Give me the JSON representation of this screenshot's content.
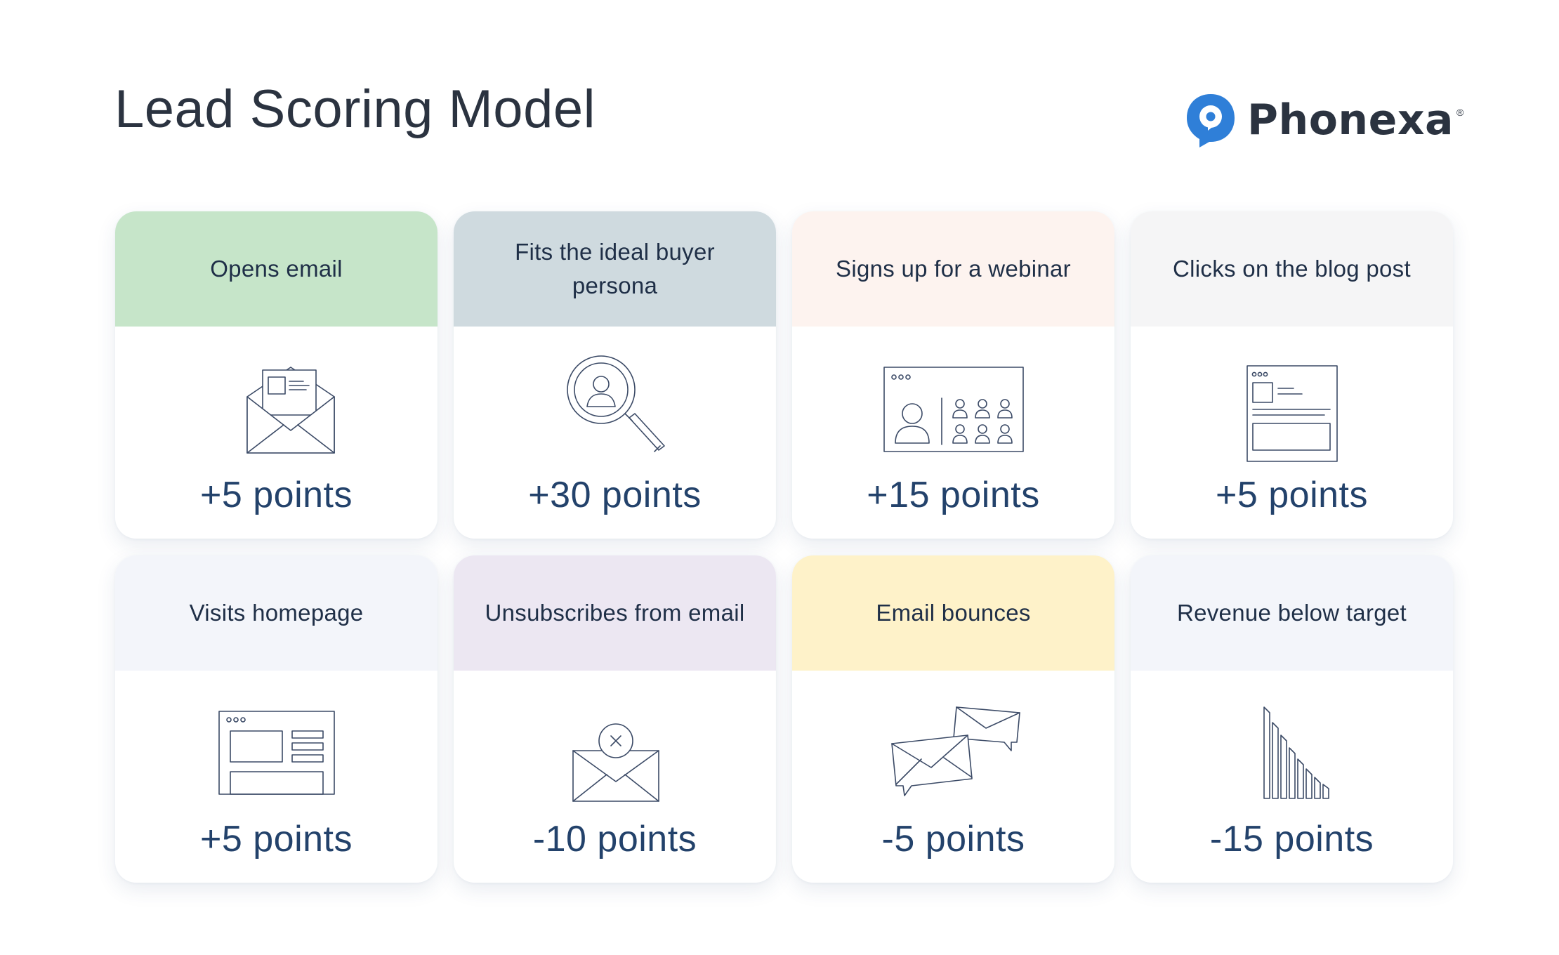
{
  "title": "Lead Scoring Model",
  "brand": {
    "name": "Phonexa",
    "registered": "®",
    "accent": "#2f7fd8"
  },
  "cards": [
    {
      "label": "Opens email",
      "points": "+5 points",
      "head_color": "#c6e5c9",
      "icon": "open-envelope-icon"
    },
    {
      "label": "Fits the ideal buyer persona",
      "points": "+30 points",
      "head_color": "#cfdadf",
      "icon": "magnifier-person-icon"
    },
    {
      "label": "Signs up for a webinar",
      "points": "+15 points",
      "head_color": "#fdf3ef",
      "icon": "webinar-screen-icon"
    },
    {
      "label": "Clicks on the blog post",
      "points": "+5 points",
      "head_color": "#f5f5f6",
      "icon": "blog-page-icon"
    },
    {
      "label": "Visits homepage",
      "points": "+5 points",
      "head_color": "#f3f5fa",
      "icon": "homepage-browser-icon"
    },
    {
      "label": "Unsubscribes from email",
      "points": "-10 points",
      "head_color": "#ece7f2",
      "icon": "envelope-x-icon"
    },
    {
      "label": "Email bounces",
      "points": "-5 points",
      "head_color": "#fef2c9",
      "icon": "bouncing-envelopes-icon"
    },
    {
      "label": "Revenue below target",
      "points": "-15 points",
      "head_color": "#f3f5fa",
      "icon": "declining-bars-icon"
    }
  ]
}
